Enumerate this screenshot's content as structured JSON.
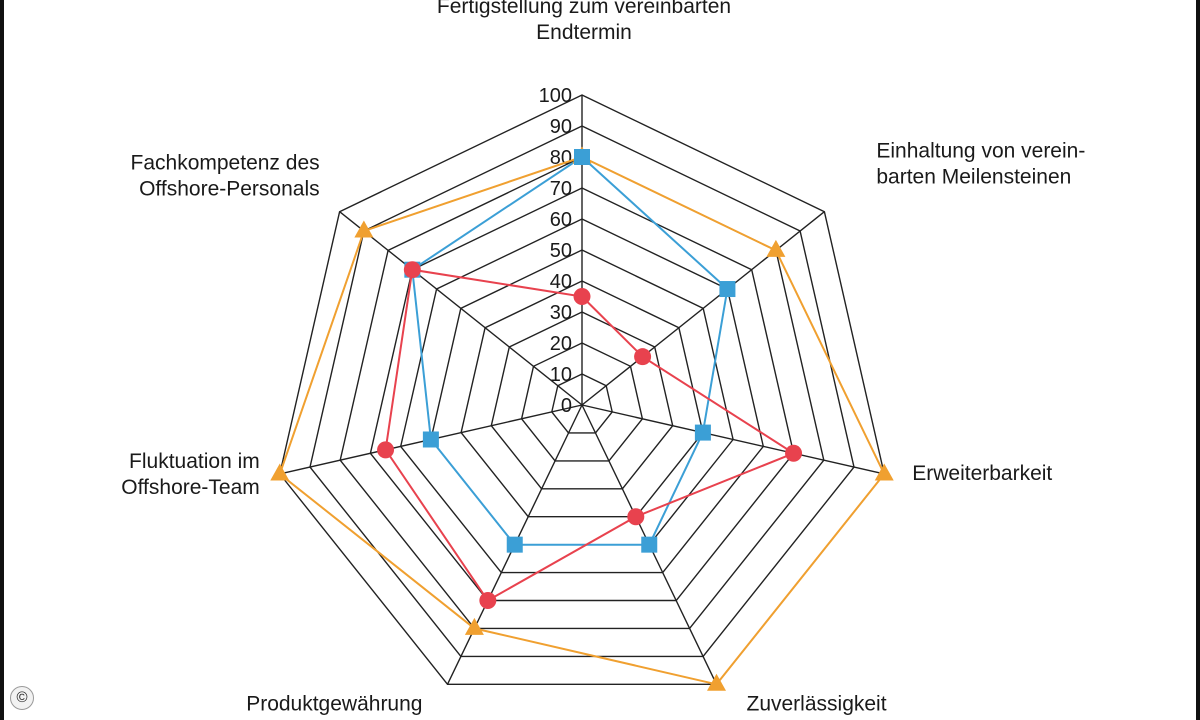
{
  "chart_data": {
    "type": "radar",
    "axes": [
      {
        "label": [
          "Fertigstellung zum vereinbarten",
          "Endtermin"
        ]
      },
      {
        "label": [
          "Einhaltung von verein-",
          "barten Meilensteinen"
        ]
      },
      {
        "label": [
          "Erweiterbarkeit"
        ]
      },
      {
        "label": [
          "Zuverlässigkeit"
        ]
      },
      {
        "label": [
          "Produktgewährung"
        ]
      },
      {
        "label": [
          "Fluktuation im",
          "Offshore-Team"
        ]
      },
      {
        "label": [
          "Fachkompetenz des",
          "Offshore-Personals"
        ]
      }
    ],
    "range": [
      0,
      100
    ],
    "ticks": [
      0,
      10,
      20,
      30,
      40,
      50,
      60,
      70,
      80,
      90,
      100
    ],
    "series": [
      {
        "marker": "triangle",
        "color": "#f0a030",
        "values": [
          80,
          80,
          100,
          100,
          80,
          100,
          90
        ]
      },
      {
        "marker": "square",
        "color": "#3b9fd6",
        "values": [
          80,
          60,
          40,
          50,
          50,
          50,
          70
        ]
      },
      {
        "marker": "circle",
        "color": "#e8424e",
        "values": [
          35,
          25,
          70,
          40,
          70,
          65,
          70
        ]
      }
    ]
  },
  "copyright_symbol": "©"
}
